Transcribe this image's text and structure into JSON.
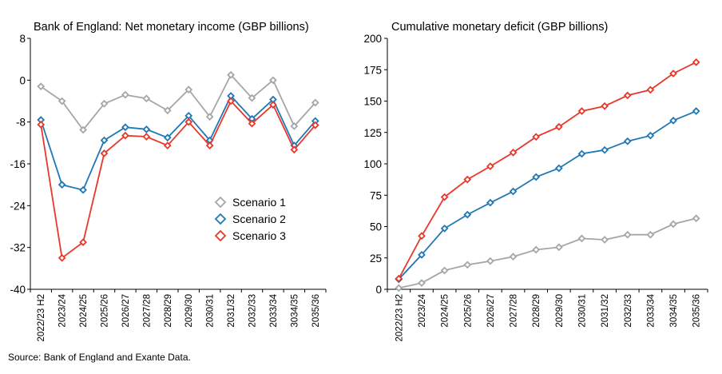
{
  "source": "Source: Bank of England and Exante Data.",
  "chart_data": [
    {
      "type": "line",
      "title": "Bank of England: Net monetary income (GBP billions)",
      "categories": [
        "2022/23 H2",
        "2023/24",
        "2024/25",
        "2025/26",
        "2026/27",
        "2027/28",
        "2028/29",
        "2029/30",
        "2030/31",
        "2031/32",
        "2032/33",
        "2033/34",
        "3034/35",
        "2035/36"
      ],
      "ylim": [
        -40,
        8
      ],
      "yticks": [
        8,
        0,
        -8,
        -16,
        -24,
        -32,
        -40
      ],
      "grid": false,
      "legend": "center-right",
      "series": [
        {
          "name": "Scenario 1",
          "color": "#a6a6a6",
          "values": [
            -1.2,
            -4,
            -9.5,
            -4.5,
            -2.8,
            -3.5,
            -5.8,
            -1.8,
            -7,
            1,
            -3.4,
            0,
            -8.8,
            -4.3
          ]
        },
        {
          "name": "Scenario 2",
          "color": "#1f77b4",
          "values": [
            -7.6,
            -20,
            -21,
            -11.5,
            -9,
            -9.4,
            -11,
            -6.8,
            -11.5,
            -3,
            -7.4,
            -3.7,
            -12.5,
            -7.8
          ]
        },
        {
          "name": "Scenario 3",
          "color": "#e8382b",
          "values": [
            -8.5,
            -34,
            -31,
            -14,
            -10.6,
            -10.8,
            -12.5,
            -8,
            -12.5,
            -4,
            -8.3,
            -4.7,
            -13.3,
            -8.6
          ]
        }
      ]
    },
    {
      "type": "line",
      "title": "Cumulative monetary deficit (GBP billions)",
      "categories": [
        "2022/23 H2",
        "2023/24",
        "2024/25",
        "2025/26",
        "2026/27",
        "2027/28",
        "2028/29",
        "2029/30",
        "2030/31",
        "2031/32",
        "2032/33",
        "2033/34",
        "3034/35",
        "2035/36"
      ],
      "ylim": [
        0,
        200
      ],
      "yticks": [
        200,
        175,
        150,
        125,
        100,
        75,
        50,
        25,
        0
      ],
      "grid": false,
      "legend": "none",
      "series": [
        {
          "name": "Scenario 1",
          "color": "#a6a6a6",
          "values": [
            1,
            5,
            15,
            19.5,
            22.5,
            26,
            31.5,
            33.5,
            40.5,
            39.5,
            43.5,
            43.5,
            52,
            56.5
          ]
        },
        {
          "name": "Scenario 2",
          "color": "#1f77b4",
          "values": [
            8,
            27.5,
            48.5,
            59.5,
            69,
            78,
            89.5,
            96.5,
            108,
            111,
            118,
            122.5,
            134.5,
            142
          ]
        },
        {
          "name": "Scenario 3",
          "color": "#e8382b",
          "values": [
            8.5,
            42.5,
            73.5,
            87.5,
            98,
            109,
            121.5,
            129.5,
            142,
            146,
            154.5,
            159,
            172,
            181
          ]
        }
      ]
    }
  ]
}
